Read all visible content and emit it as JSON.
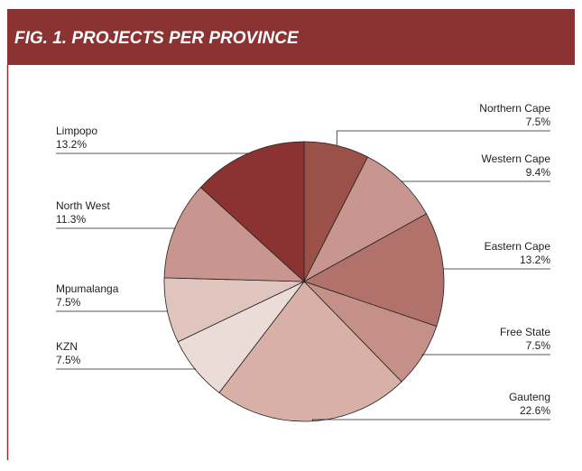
{
  "chart_data": {
    "type": "pie",
    "title": "FIG. 1. PROJECTS PER PROVINCE",
    "categories": [
      "Northern Cape",
      "Western Cape",
      "Eastern Cape",
      "Free State",
      "Gauteng",
      "KZN",
      "Mpumalanga",
      "North West",
      "Limpopo"
    ],
    "values": [
      7.5,
      9.4,
      13.2,
      7.5,
      22.6,
      7.5,
      7.5,
      11.3,
      13.2
    ],
    "value_labels": [
      "7.5%",
      "9.4%",
      "13.2%",
      "7.5%",
      "22.6%",
      "7.5%",
      "7.5%",
      "11.3%",
      "13.2%"
    ],
    "colors": [
      "#9b5048",
      "#c8968e",
      "#b0726a",
      "#c49088",
      "#d8b0a8",
      "#ecdcd8",
      "#e0c4be",
      "#c8968e",
      "#8b3232"
    ]
  }
}
